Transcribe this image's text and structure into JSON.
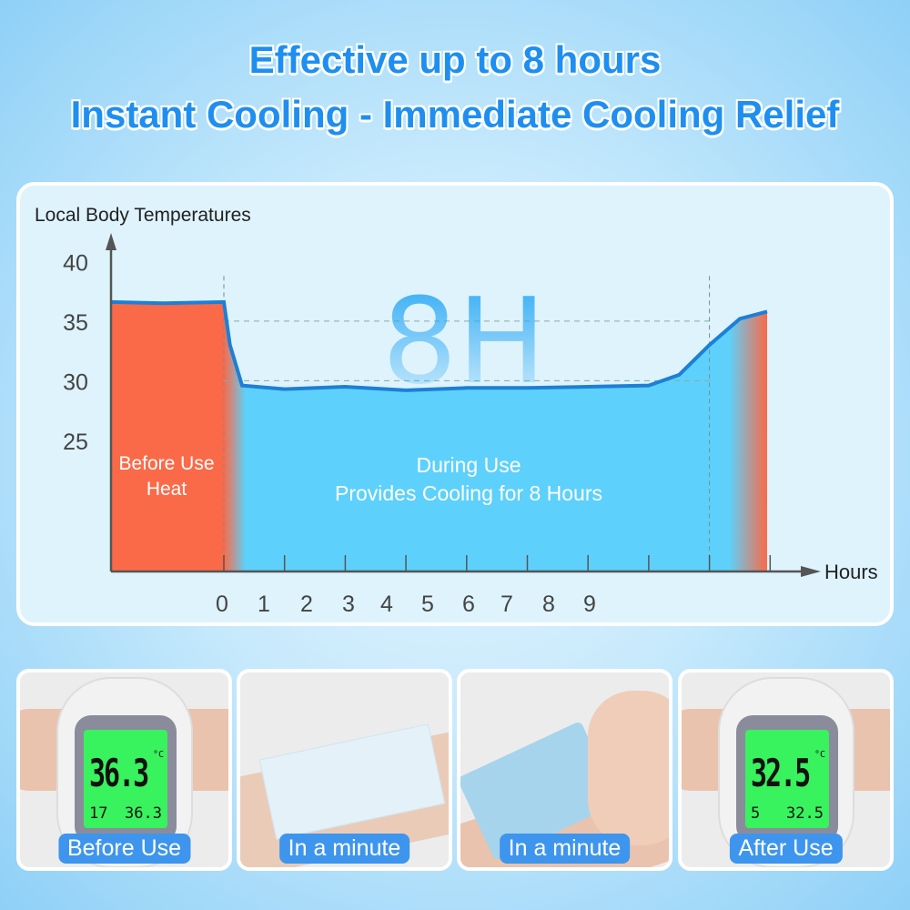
{
  "headline": {
    "line1": "Effective up to 8 hours",
    "line2": "Instant Cooling - Immediate Cooling Relief",
    "color": "#1e8ff0"
  },
  "chart_data": {
    "type": "area",
    "ylabel": "Local Body Temperatures",
    "xlabel": "Hours",
    "yticks": [
      "40",
      "35",
      "30",
      "25"
    ],
    "xticks": [
      "0",
      "1",
      "2",
      "3",
      "4",
      "5",
      "6",
      "7",
      "8",
      "9"
    ],
    "ylim": [
      14,
      42
    ],
    "gridlines": [
      35,
      30
    ],
    "watermark": "8H",
    "annotations": {
      "before": [
        "Before Use",
        "Heat"
      ],
      "during": [
        "During Use",
        "Provides Cooling for 8 Hours"
      ]
    },
    "series": [
      {
        "points": [
          [
            -1.85,
            36.6
          ],
          [
            -1,
            36.5
          ],
          [
            0,
            36.6
          ],
          [
            0.1,
            33
          ],
          [
            0.3,
            29.6
          ],
          [
            1,
            29.3
          ],
          [
            2,
            29.5
          ],
          [
            3,
            29.2
          ],
          [
            4,
            29.4
          ],
          [
            5,
            29.4
          ],
          [
            6,
            29.5
          ],
          [
            7,
            29.6
          ],
          [
            7.5,
            30.5
          ],
          [
            8,
            33
          ],
          [
            8.5,
            35.2
          ],
          [
            8.95,
            35.8
          ]
        ]
      }
    ],
    "colors": {
      "heat": "#fb6a48",
      "cool": "#5dd1fb",
      "line": "#1d7fd6"
    }
  },
  "photos": [
    {
      "label": "Before Use",
      "reading": "36.3",
      "unit": "°C",
      "memo_index": "17",
      "memo_value": "36.3"
    },
    {
      "label": "In a minute"
    },
    {
      "label": "In a minute"
    },
    {
      "label": "After Use",
      "reading": "32.5",
      "unit": "°C",
      "memo_index": "5",
      "memo_value": "32.5"
    }
  ]
}
